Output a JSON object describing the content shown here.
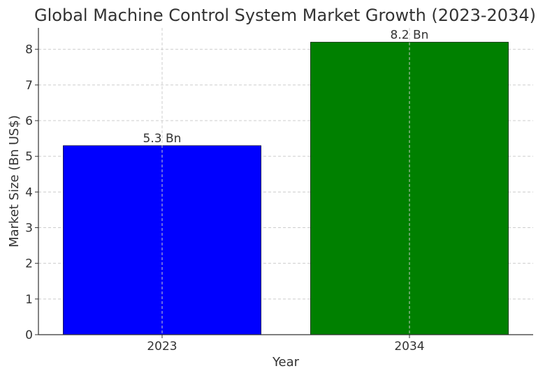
{
  "chart_data": {
    "type": "bar",
    "title": "Global Machine Control System Market Growth (2023-2034)",
    "xlabel": "Year",
    "ylabel": "Market Size (Bn US$)",
    "categories": [
      "2023",
      "2034"
    ],
    "values": [
      5.3,
      8.2
    ],
    "data_labels": [
      "5.3 Bn",
      "8.2 Bn"
    ],
    "bar_colors": [
      "#0000ff",
      "#008000"
    ],
    "ylim": [
      0,
      8.6
    ],
    "yticks": [
      0,
      1,
      2,
      3,
      4,
      5,
      6,
      7,
      8
    ],
    "grid": true,
    "grid_style": "dashed"
  }
}
